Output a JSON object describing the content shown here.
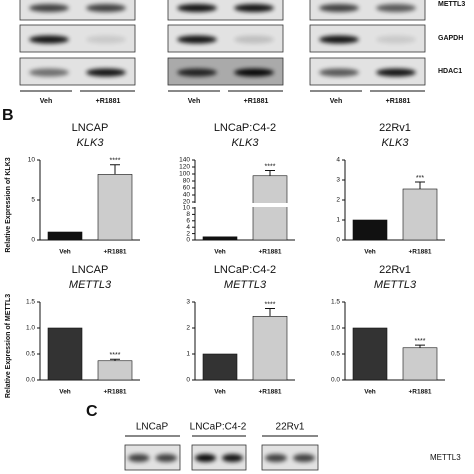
{
  "panel_a": {
    "row_labels": [
      "METTL3",
      "GAPDH",
      "HDAC1"
    ],
    "lane_labels": [
      "Veh",
      "+R1881",
      "Veh",
      "+R1881",
      "Veh",
      "+R1881"
    ]
  },
  "panel_b_label": "B",
  "panel_c": {
    "label": "C",
    "cell_lines": [
      "LNCaP",
      "LNCaP:C4-2",
      "22Rv1"
    ],
    "protein": "METTL3"
  },
  "chart_data": [
    {
      "type": "bar",
      "title": "LNCAP",
      "subtitle": "KLK3",
      "ylabel": "Relative Expression of KLK3",
      "categories": [
        "Veh",
        "+R1881"
      ],
      "values": [
        1,
        8.2
      ],
      "errors": [
        0,
        1.2
      ],
      "colors": [
        "#111111",
        "#cccccc"
      ],
      "ylim": [
        0,
        10
      ],
      "yticks": [
        0,
        5,
        10
      ],
      "significance": [
        null,
        "****"
      ]
    },
    {
      "type": "bar",
      "title": "LNCaP:C4-2",
      "subtitle": "KLK3",
      "categories": [
        "Veh",
        "+R1881"
      ],
      "values": [
        1,
        95
      ],
      "errors": [
        0,
        15
      ],
      "colors": [
        "#111111",
        "#cccccc"
      ],
      "ylim": [
        0,
        140
      ],
      "axis_break": [
        10,
        20
      ],
      "yticks": [
        0,
        2,
        4,
        6,
        8,
        10,
        20,
        40,
        60,
        80,
        100,
        120,
        140
      ],
      "significance": [
        null,
        "****"
      ]
    },
    {
      "type": "bar",
      "title": "22Rv1",
      "subtitle": "KLK3",
      "categories": [
        "Veh",
        "+R1881"
      ],
      "values": [
        1,
        2.55
      ],
      "errors": [
        0,
        0.35
      ],
      "colors": [
        "#111111",
        "#cccccc"
      ],
      "ylim": [
        0,
        4
      ],
      "yticks": [
        0,
        1,
        2,
        3,
        4
      ],
      "significance": [
        null,
        "***"
      ]
    },
    {
      "type": "bar",
      "title": "LNCAP",
      "subtitle": "METTL3",
      "ylabel": "Relative Expression of METTL3",
      "categories": [
        "Veh",
        "+R1881"
      ],
      "values": [
        1,
        0.37
      ],
      "errors": [
        0,
        0.03
      ],
      "colors": [
        "#333333",
        "#cccccc"
      ],
      "ylim": [
        0,
        1.5
      ],
      "yticks": [
        {
          "value": 0,
          "label": "0.0"
        },
        0.5,
        {
          "value": 1,
          "label": "1.0"
        },
        1.5
      ],
      "significance": [
        null,
        "****"
      ]
    },
    {
      "type": "bar",
      "title": "LNCaP:C4-2",
      "subtitle": "METTL3",
      "categories": [
        "Veh",
        "+R1881"
      ],
      "values": [
        1,
        2.45
      ],
      "errors": [
        0,
        0.3
      ],
      "colors": [
        "#333333",
        "#cccccc"
      ],
      "ylim": [
        0,
        3
      ],
      "yticks": [
        0,
        1,
        2,
        3
      ],
      "significance": [
        null,
        "****"
      ]
    },
    {
      "type": "bar",
      "title": "22Rv1",
      "subtitle": "METTL3",
      "categories": [
        "Veh",
        "+R1881"
      ],
      "values": [
        1,
        0.62
      ],
      "errors": [
        0,
        0.05
      ],
      "colors": [
        "#333333",
        "#cccccc"
      ],
      "ylim": [
        0,
        1.5
      ],
      "yticks": [
        {
          "value": 0,
          "label": "0.0"
        },
        0.5,
        {
          "value": 1,
          "label": "1.0"
        },
        1.5
      ],
      "significance": [
        null,
        "****"
      ]
    }
  ]
}
